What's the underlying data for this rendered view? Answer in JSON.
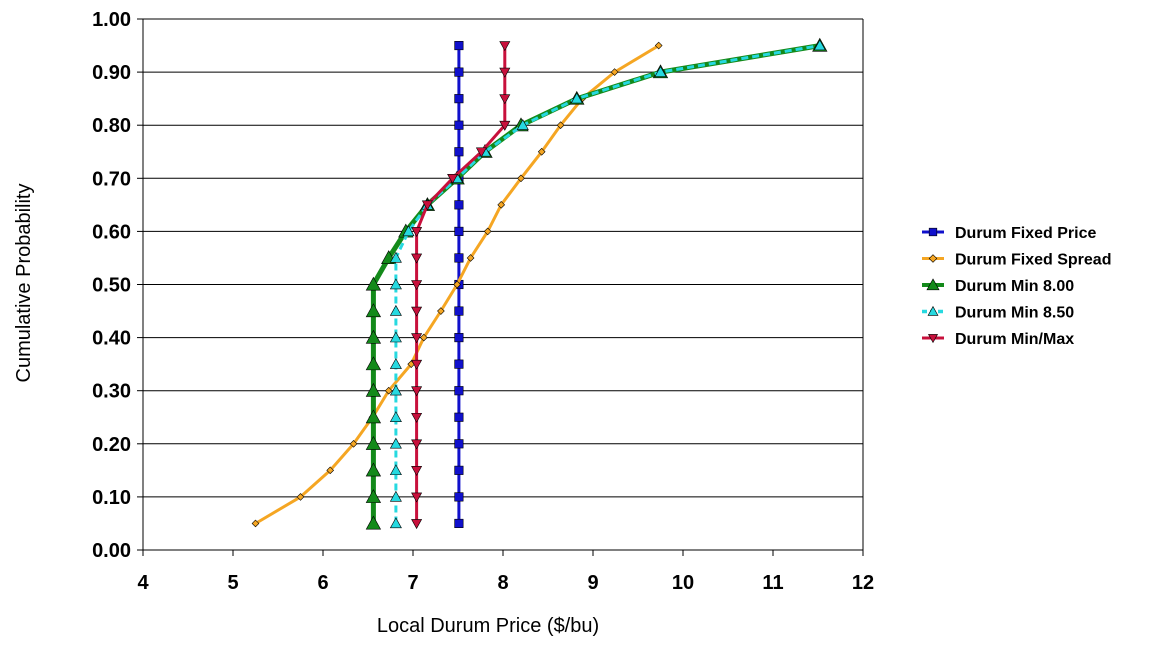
{
  "chart_data": {
    "type": "line",
    "title": "",
    "xlabel": "Local Durum Price ($/bu)",
    "ylabel": "Cumulative Probability",
    "xlim": [
      4,
      12
    ],
    "ylim": [
      0,
      1
    ],
    "x_ticks": [
      "4",
      "5",
      "6",
      "7",
      "8",
      "9",
      "10",
      "11",
      "12"
    ],
    "y_ticks": [
      "0.00",
      "0.10",
      "0.20",
      "0.30",
      "0.40",
      "0.50",
      "0.60",
      "0.70",
      "0.80",
      "0.90",
      "1.00"
    ],
    "grid": "horizontal",
    "legend_position": "right",
    "series": [
      {
        "name": "Durum Fixed Price",
        "color": "#1010cc",
        "marker": "square",
        "line": "solid",
        "x": [
          7.51,
          7.51,
          7.51,
          7.51,
          7.51,
          7.51,
          7.51,
          7.51,
          7.51,
          7.51,
          7.51,
          7.51,
          7.51,
          7.51,
          7.51,
          7.51,
          7.51,
          7.51,
          7.51
        ],
        "y": [
          0.05,
          0.1,
          0.15,
          0.2,
          0.25,
          0.3,
          0.35,
          0.4,
          0.45,
          0.5,
          0.55,
          0.6,
          0.65,
          0.7,
          0.75,
          0.8,
          0.85,
          0.9,
          0.95
        ]
      },
      {
        "name": "Durum Fixed Spread",
        "color": "#f5a623",
        "marker": "diamond",
        "line": "solid",
        "x": [
          5.25,
          5.75,
          6.08,
          6.34,
          6.55,
          6.73,
          6.98,
          7.12,
          7.31,
          7.49,
          7.64,
          7.83,
          7.98,
          8.2,
          8.43,
          8.64,
          8.88,
          9.24,
          9.73
        ],
        "y": [
          0.05,
          0.1,
          0.15,
          0.2,
          0.25,
          0.3,
          0.35,
          0.4,
          0.45,
          0.5,
          0.55,
          0.6,
          0.65,
          0.7,
          0.75,
          0.8,
          0.85,
          0.9,
          0.95
        ]
      },
      {
        "name": "Durum Min 8.00",
        "color": "#138a1a",
        "marker": "triangle-up",
        "line": "solid-thick",
        "x": [
          6.56,
          6.56,
          6.56,
          6.56,
          6.56,
          6.56,
          6.56,
          6.56,
          6.56,
          6.56,
          6.73,
          6.92,
          7.16,
          7.49,
          7.8,
          8.2,
          8.82,
          9.75,
          11.52
        ],
        "y": [
          0.05,
          0.1,
          0.15,
          0.2,
          0.25,
          0.3,
          0.35,
          0.4,
          0.45,
          0.5,
          0.55,
          0.6,
          0.65,
          0.7,
          0.75,
          0.8,
          0.85,
          0.9,
          0.95
        ]
      },
      {
        "name": "Durum Min 8.50",
        "color": "#26d9e0",
        "marker": "triangle-up",
        "line": "dashed",
        "x": [
          6.81,
          6.81,
          6.81,
          6.81,
          6.81,
          6.81,
          6.81,
          6.81,
          6.81,
          6.81,
          6.81,
          6.95,
          7.16,
          7.49,
          7.8,
          8.22,
          8.82,
          9.75,
          11.52
        ],
        "y": [
          0.05,
          0.1,
          0.15,
          0.2,
          0.25,
          0.3,
          0.35,
          0.4,
          0.45,
          0.5,
          0.55,
          0.6,
          0.65,
          0.7,
          0.75,
          0.8,
          0.85,
          0.9,
          0.95
        ]
      },
      {
        "name": "Durum Min/Max",
        "color": "#c8103c",
        "marker": "triangle-down",
        "line": "solid",
        "x": [
          7.04,
          7.04,
          7.04,
          7.04,
          7.04,
          7.04,
          7.04,
          7.04,
          7.04,
          7.04,
          7.04,
          7.04,
          7.16,
          7.44,
          7.76,
          8.02,
          8.02,
          8.02,
          8.02
        ],
        "y": [
          0.05,
          0.1,
          0.15,
          0.2,
          0.25,
          0.3,
          0.35,
          0.4,
          0.45,
          0.5,
          0.55,
          0.6,
          0.65,
          0.7,
          0.75,
          0.8,
          0.85,
          0.9,
          0.95
        ]
      }
    ]
  }
}
